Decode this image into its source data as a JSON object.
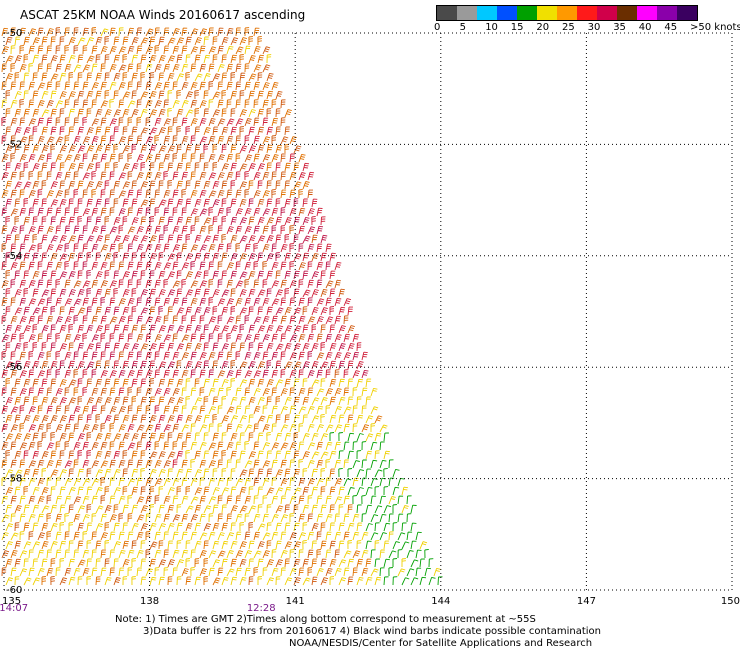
{
  "title": "ASCAT 25KM NOAA Winds 20160617 ascending",
  "legend": {
    "labels": [
      "0",
      "5",
      "10",
      "15",
      "20",
      "25",
      "30",
      "35",
      "40",
      "45",
      ">50 knots"
    ],
    "colors": [
      "#4a4a4a",
      "#9a9a9a",
      "#00c8ff",
      "#0050ff",
      "#00a000",
      "#f0e000",
      "#ff9900",
      "#ff1a1a",
      "#d0004a",
      "#6a2e00",
      "#ff00ff",
      "#8a00aa",
      "#3a0060"
    ]
  },
  "axes": {
    "lon_labels": [
      "135",
      "138",
      "141",
      "144",
      "147",
      "150"
    ],
    "lat_labels": [
      "-50",
      "-52",
      "-54",
      "-56",
      "-58",
      "-60"
    ]
  },
  "times": [
    {
      "text": "14:07",
      "lon": 135.2
    },
    {
      "text": "12:28",
      "lon": 140.3
    }
  ],
  "notes": {
    "line1": "Note: 1) Times are GMT 2)Times along bottom correspond to measurement at ~55S",
    "line2": "3)Data buffer is 22 hrs from 20160617 4) Black wind barbs indicate possible contamination",
    "line3": "NOAA/NESDIS/Center for Satellite Applications and Research"
  },
  "wind_colors": {
    "orange": "#e07000",
    "dark_orange": "#d05a10",
    "red": "#d0203a",
    "crimson": "#c0184a",
    "yellow": "#f0d000",
    "green": "#00a000"
  }
}
